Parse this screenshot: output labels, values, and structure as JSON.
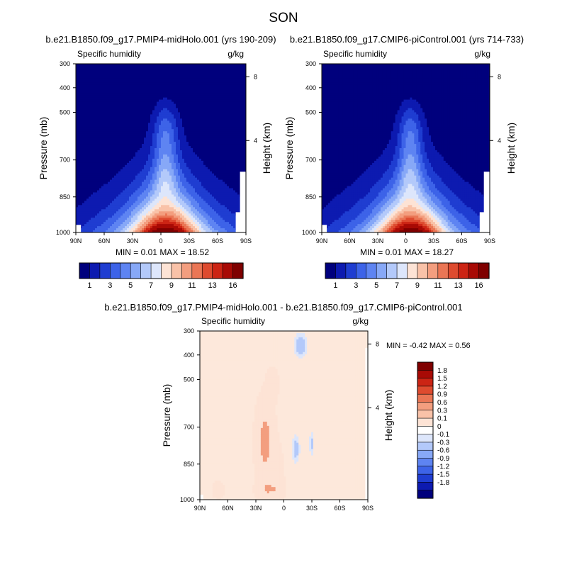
{
  "title": "SON",
  "colors": {
    "abs_palette": [
      "#00007d",
      "#0d1ab0",
      "#1f3dd1",
      "#3d63e8",
      "#5e84f2",
      "#87a8f7",
      "#b3c9fa",
      "#dde6fb",
      "#fde3d5",
      "#f9c2a8",
      "#f39e7f",
      "#ea7655",
      "#de4b2f",
      "#cc2414",
      "#a80a05",
      "#7f0000"
    ],
    "diff_palette": [
      "#00007d",
      "#0d1ab0",
      "#1f3dd1",
      "#3d63e8",
      "#5e84f2",
      "#87a8f7",
      "#b3c9fa",
      "#dde6fb",
      "#ffffff",
      "#fde3d5",
      "#f9c2a8",
      "#f39e7f",
      "#ea7655",
      "#de4b2f",
      "#cc2414",
      "#a80a05",
      "#7f0000"
    ]
  },
  "chart_data": [
    {
      "type": "heatmap",
      "id": "panel1",
      "title": "b.e21.B1850.f09_g17.PMIP4-midHolo.001 (yrs 190-209)",
      "left_label": "Specific humidity",
      "right_label": "g/kg",
      "ylabel": "Pressure (mb)",
      "ylabel_right": "Height (km)",
      "xticks": [
        "90N",
        "60N",
        "30N",
        "0",
        "30S",
        "60S",
        "90S"
      ],
      "yticks": [
        "300",
        "400",
        "500",
        "700",
        "850",
        "1000"
      ],
      "yticks_right": [
        "8",
        "4"
      ],
      "ylim": [
        1000,
        300
      ],
      "xlim": [
        90,
        -90
      ],
      "stats": "MIN =  0.01  MAX =  18.52",
      "colorbar_labels": [
        "1",
        "3",
        "5",
        "7",
        "9",
        "11",
        "13",
        "16"
      ],
      "max_value": 18.52,
      "min_value": 0.01
    },
    {
      "type": "heatmap",
      "id": "panel2",
      "title": "b.e21.B1850.f09_g17.CMIP6-piControl.001 (yrs 714-733)",
      "left_label": "Specific humidity",
      "right_label": "g/kg",
      "ylabel": "Pressure (mb)",
      "ylabel_right": "Height (km)",
      "xticks": [
        "90N",
        "60N",
        "30N",
        "0",
        "30S",
        "60S",
        "90S"
      ],
      "yticks": [
        "300",
        "400",
        "500",
        "700",
        "850",
        "1000"
      ],
      "yticks_right": [
        "8",
        "4"
      ],
      "ylim": [
        1000,
        300
      ],
      "xlim": [
        90,
        -90
      ],
      "stats": "MIN =  0.01  MAX =  18.27",
      "colorbar_labels": [
        "1",
        "3",
        "5",
        "7",
        "9",
        "11",
        "13",
        "16"
      ],
      "max_value": 18.27,
      "min_value": 0.01
    },
    {
      "type": "heatmap",
      "id": "panel3",
      "title": "b.e21.B1850.f09_g17.PMIP4-midHolo.001 - b.e21.B1850.f09_g17.CMIP6-piControl.001",
      "left_label": "Specific humidity",
      "right_label": "g/kg",
      "ylabel": "Pressure (mb)",
      "ylabel_right": "Height (km)",
      "xticks": [
        "90N",
        "60N",
        "30N",
        "0",
        "30S",
        "60S",
        "90S"
      ],
      "yticks": [
        "300",
        "400",
        "500",
        "700",
        "850",
        "1000"
      ],
      "yticks_right": [
        "8",
        "4"
      ],
      "ylim": [
        1000,
        300
      ],
      "xlim": [
        90,
        -90
      ],
      "stats": "MIN = -0.42  MAX =   0.56",
      "colorbar_labels": [
        "1.8",
        "1.5",
        "1.2",
        "0.9",
        "0.6",
        "0.3",
        "0.1",
        "0",
        "-0.1",
        "-0.3",
        "-0.6",
        "-0.9",
        "-1.2",
        "-1.5",
        "-1.8"
      ],
      "max_value": 0.56,
      "min_value": -0.42
    }
  ]
}
